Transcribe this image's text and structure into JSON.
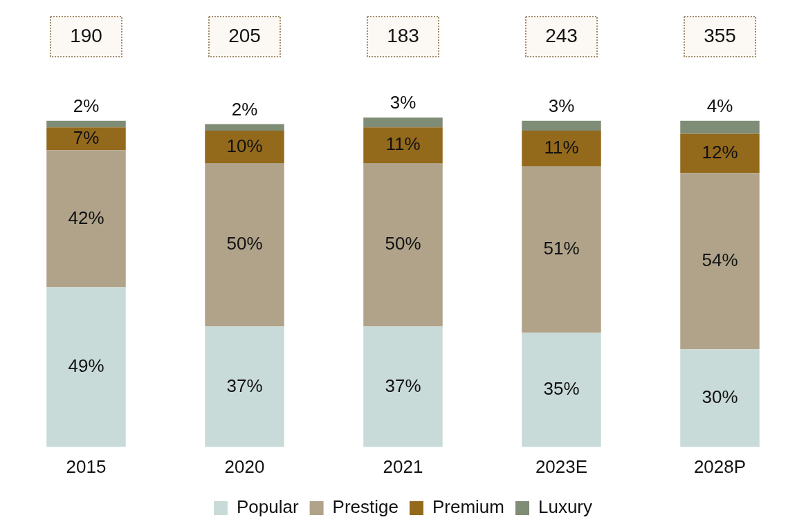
{
  "chart_data": {
    "type": "bar",
    "stacked": true,
    "legend": "bottom",
    "grid": false,
    "categories": [
      "2015",
      "2020",
      "2021",
      "2023E",
      "2028P"
    ],
    "series": [
      {
        "name": "Popular",
        "color": "#c9dbd9",
        "values": [
          49,
          37,
          37,
          35,
          30
        ],
        "value_labels": [
          "49%",
          "37%",
          "37%",
          "35%",
          "30%"
        ]
      },
      {
        "name": "Prestige",
        "color": "#b0a38a",
        "values": [
          42,
          50,
          50,
          51,
          54
        ],
        "value_labels": [
          "42%",
          "50%",
          "50%",
          "51%",
          "54%"
        ]
      },
      {
        "name": "Premium",
        "color": "#93691c",
        "values": [
          7,
          10,
          11,
          11,
          12
        ],
        "value_labels": [
          "7%",
          "10%",
          "11%",
          "11%",
          "12%"
        ]
      },
      {
        "name": "Luxury",
        "color": "#7f8c76",
        "values": [
          2,
          2,
          3,
          3,
          4
        ],
        "value_labels": [
          "2%",
          "2%",
          "3%",
          "3%",
          "4%"
        ]
      }
    ],
    "annotations": [
      "190",
      "205",
      "183",
      "243",
      "355"
    ]
  }
}
